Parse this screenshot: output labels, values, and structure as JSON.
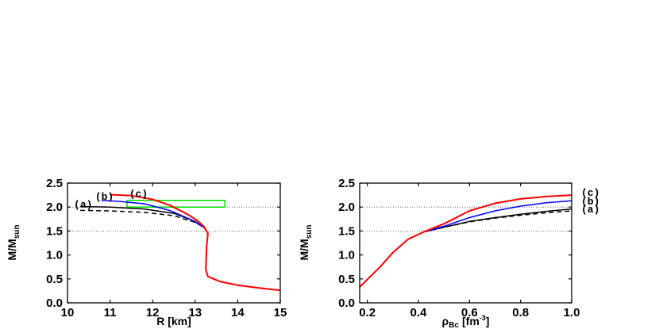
{
  "chart_data": [
    {
      "type": "line",
      "panel": "left",
      "xlabel": "R [km]",
      "ylabel": "M/M",
      "ylabel_sub": "sun",
      "xlim": [
        10,
        15
      ],
      "ylim": [
        0,
        2.5
      ],
      "xticks": [
        "10",
        "11",
        "12",
        "13",
        "14",
        "15"
      ],
      "yticks": [
        "0.0",
        "0.5",
        "1.0",
        "1.5",
        "2.0",
        "2.5"
      ],
      "reference_lines": [
        1.5,
        2.0
      ],
      "highlight_box": {
        "x": [
          11.4,
          13.7
        ],
        "y": [
          2.0,
          2.14
        ],
        "color": "#00dd00"
      },
      "annotations": [
        {
          "text": "(a)",
          "x": 10.15,
          "y": 2.05
        },
        {
          "text": "(b)",
          "x": 10.65,
          "y": 2.22
        },
        {
          "text": "(c)",
          "x": 11.45,
          "y": 2.28
        }
      ],
      "series": [
        {
          "name": "(a)",
          "color": "#000000",
          "dash": "none",
          "x": [
            10.3,
            11.0,
            11.8,
            12.5,
            13.0,
            13.2,
            13.3,
            13.27,
            13.25,
            13.3,
            13.6,
            14.0,
            14.5,
            15.0
          ],
          "y": [
            2.01,
            2.0,
            1.96,
            1.87,
            1.7,
            1.58,
            1.45,
            1.2,
            0.7,
            0.55,
            0.44,
            0.37,
            0.31,
            0.26
          ]
        },
        {
          "name": "dashed",
          "color": "#000000",
          "dash": "6,4",
          "x": [
            10.3,
            11.0,
            11.8,
            12.5,
            13.0,
            13.2
          ],
          "y": [
            1.93,
            1.92,
            1.89,
            1.82,
            1.68,
            1.58
          ]
        },
        {
          "name": "(b)",
          "color": "#0000ff",
          "dash": "none",
          "x": [
            10.8,
            11.2,
            11.8,
            12.4,
            12.9,
            13.2
          ],
          "y": [
            2.14,
            2.12,
            2.07,
            1.93,
            1.74,
            1.58
          ]
        },
        {
          "name": "(c)",
          "color": "#ff0000",
          "dash": "none",
          "x": [
            11.0,
            11.5,
            12.0,
            12.4,
            12.8,
            13.05,
            13.2,
            13.3,
            13.27,
            13.25,
            13.3,
            13.6,
            14.0,
            14.5,
            15.0
          ],
          "y": [
            2.26,
            2.24,
            2.16,
            2.04,
            1.86,
            1.72,
            1.6,
            1.45,
            1.2,
            0.7,
            0.55,
            0.44,
            0.37,
            0.31,
            0.26
          ]
        }
      ]
    },
    {
      "type": "line",
      "panel": "right",
      "xlabel": "ρ",
      "xlabel_sub": "Bc",
      "xlabel_unit": "[fm",
      "xlabel_sup": "-3",
      "xlabel_close": "]",
      "ylabel": "M/M",
      "ylabel_sub": "sun",
      "xlim": [
        0.17,
        1.0
      ],
      "ylim": [
        0,
        2.5
      ],
      "xticks": [
        "0.2",
        "0.4",
        "0.6",
        "0.8",
        "1.0"
      ],
      "yticks": [
        "0.0",
        "0.5",
        "1.0",
        "1.5",
        "2.0",
        "2.5"
      ],
      "reference_lines": [
        1.5,
        2.0
      ],
      "annotations": [
        {
          "text": "(c)",
          "y": 2.3
        },
        {
          "text": "(b)",
          "y": 2.12
        },
        {
          "text": "(a)",
          "y": 1.95
        }
      ],
      "series": [
        {
          "name": "(a)",
          "color": "#000000",
          "dash": "none",
          "x": [
            0.17,
            0.25,
            0.3,
            0.36,
            0.42,
            0.5,
            0.6,
            0.7,
            0.8,
            0.9,
            1.0
          ],
          "y": [
            0.33,
            0.75,
            1.05,
            1.33,
            1.48,
            1.58,
            1.7,
            1.78,
            1.85,
            1.91,
            1.96
          ]
        },
        {
          "name": "dashed",
          "color": "#000000",
          "dash": "6,4",
          "x": [
            0.42,
            0.5,
            0.6,
            0.7,
            0.8,
            0.9,
            1.0
          ],
          "y": [
            1.48,
            1.58,
            1.69,
            1.77,
            1.83,
            1.88,
            1.92
          ]
        },
        {
          "name": "(b)",
          "color": "#0000ff",
          "dash": "none",
          "x": [
            0.42,
            0.5,
            0.6,
            0.7,
            0.8,
            0.9,
            1.0
          ],
          "y": [
            1.48,
            1.6,
            1.78,
            1.92,
            2.02,
            2.09,
            2.13
          ]
        },
        {
          "name": "(c)",
          "color": "#ff0000",
          "dash": "none",
          "x": [
            0.17,
            0.25,
            0.3,
            0.36,
            0.42,
            0.5,
            0.6,
            0.7,
            0.8,
            0.9,
            1.0
          ],
          "y": [
            0.33,
            0.75,
            1.05,
            1.33,
            1.48,
            1.65,
            1.92,
            2.08,
            2.17,
            2.22,
            2.25
          ]
        }
      ]
    }
  ]
}
